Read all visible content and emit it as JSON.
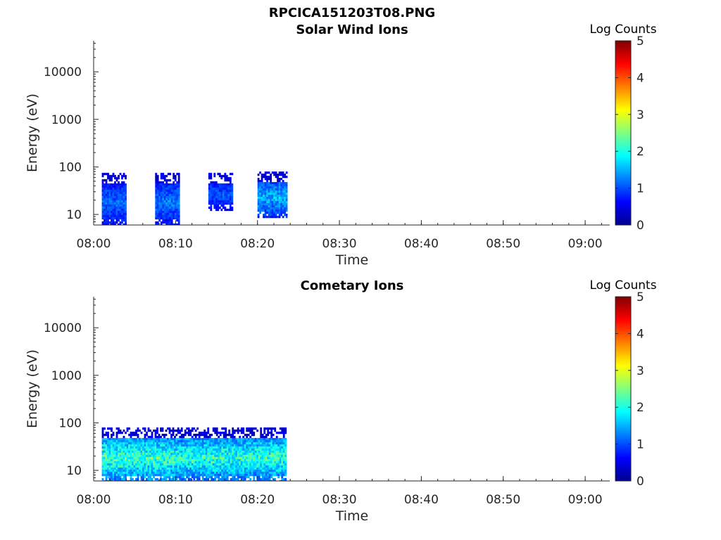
{
  "figure": {
    "title": "RPCICA151203T08.PNG"
  },
  "chart_data": [
    {
      "type": "heatmap",
      "title": "Solar Wind Ions",
      "xlabel": "Time",
      "ylabel": "Energy (eV)",
      "y_scale": "log",
      "x_range": [
        "08:00",
        "09:03"
      ],
      "y_range_eV": [
        6,
        45000
      ],
      "x_ticks": [
        "08:00",
        "08:10",
        "08:20",
        "08:30",
        "08:40",
        "08:50",
        "09:00"
      ],
      "y_ticks": [
        "10",
        "100",
        "1000",
        "10000"
      ],
      "colorbar": {
        "label": "Log Counts",
        "range": [
          0,
          5
        ],
        "ticks": [
          "0",
          "1",
          "2",
          "3",
          "4",
          "5"
        ],
        "colormap": "jet"
      },
      "data_blocks": [
        {
          "t_start": "08:01",
          "t_end": "08:04",
          "e_min_eV": 6,
          "e_max_eV": 75,
          "log_counts_peak": 1.2
        },
        {
          "t_start": "08:07:30",
          "t_end": "08:10:30",
          "e_min_eV": 6,
          "e_max_eV": 75,
          "log_counts_peak": 1.3
        },
        {
          "t_start": "08:14",
          "t_end": "08:17",
          "e_min_eV": 12,
          "e_max_eV": 75,
          "log_counts_peak": 1.1
        },
        {
          "t_start": "08:20",
          "t_end": "08:23:30",
          "e_min_eV": 9,
          "e_max_eV": 80,
          "log_counts_peak": 1.6
        }
      ]
    },
    {
      "type": "heatmap",
      "title": "Cometary Ions",
      "xlabel": "Time",
      "ylabel": "Energy (eV)",
      "y_scale": "log",
      "x_range": [
        "08:00",
        "09:03"
      ],
      "y_range_eV": [
        6,
        45000
      ],
      "x_ticks": [
        "08:00",
        "08:10",
        "08:20",
        "08:30",
        "08:40",
        "08:50",
        "09:00"
      ],
      "y_ticks": [
        "10",
        "100",
        "1000",
        "10000"
      ],
      "colorbar": {
        "label": "Log Counts",
        "range": [
          0,
          5
        ],
        "ticks": [
          "0",
          "1",
          "2",
          "3",
          "4",
          "5"
        ],
        "colormap": "jet"
      },
      "data_blocks": [
        {
          "t_start": "08:01",
          "t_end": "08:10",
          "e_min_eV": 6,
          "e_max_eV": 80,
          "log_counts_peak": 2.3
        },
        {
          "t_start": "08:10",
          "t_end": "08:23:30",
          "e_min_eV": 6,
          "e_max_eV": 80,
          "log_counts_peak": 2.2
        }
      ]
    }
  ]
}
